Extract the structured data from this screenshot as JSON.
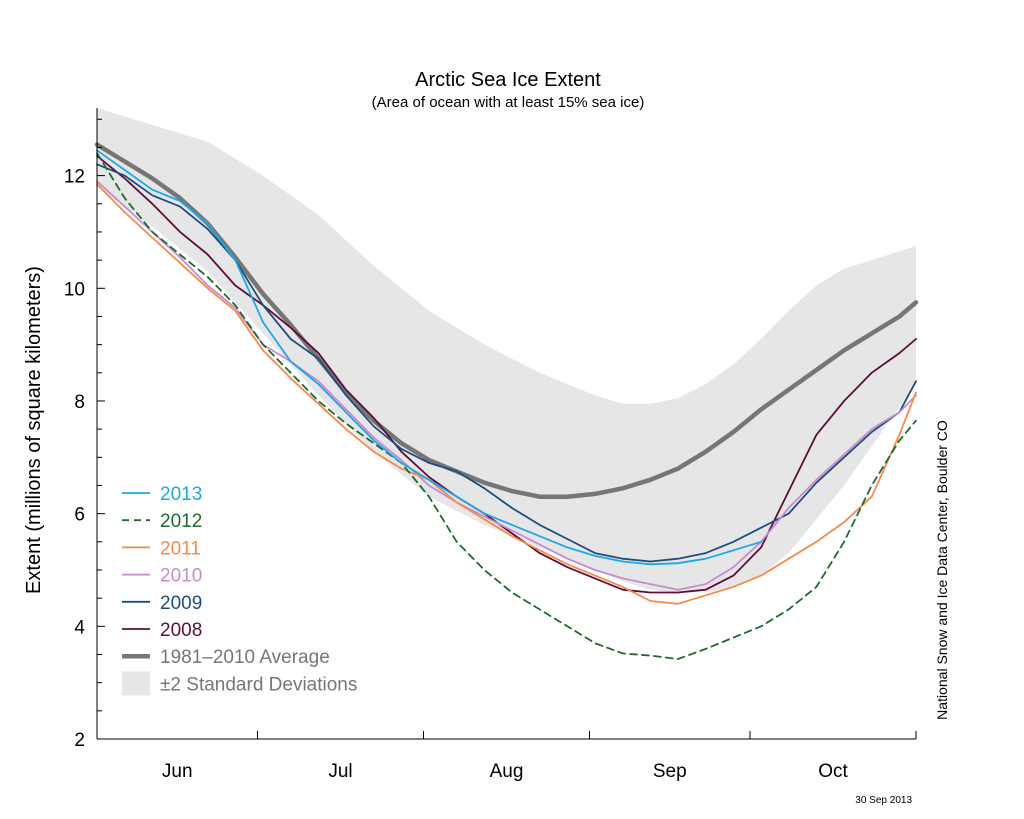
{
  "chart_data": {
    "type": "line",
    "title": "Arctic Sea Ice Extent",
    "subtitle": "(Area of ocean with at least 15% sea ice)",
    "ylabel": "Extent (millions of square kilometers)",
    "xlabel": "",
    "ylim": [
      2,
      13.2
    ],
    "yticks": [
      2,
      4,
      6,
      8,
      10,
      12
    ],
    "xlim": [
      0,
      148
    ],
    "month_boundaries": [
      0,
      29,
      59,
      89,
      118,
      148
    ],
    "month_labels": [
      {
        "label": "Jun",
        "x": 14.5
      },
      {
        "label": "Jul",
        "x": 44
      },
      {
        "label": "Aug",
        "x": 74
      },
      {
        "label": "Sep",
        "x": 103.5
      },
      {
        "label": "Oct",
        "x": 133
      }
    ],
    "std_band": {
      "label": "±2 Standard Deviations",
      "color": "#e6e6e6",
      "x": [
        0,
        10,
        20,
        30,
        40,
        50,
        60,
        70,
        80,
        90,
        95,
        100,
        105,
        110,
        115,
        120,
        125,
        130,
        135,
        140,
        148
      ],
      "upper": [
        13.2,
        12.9,
        12.6,
        12.0,
        11.3,
        10.4,
        9.6,
        9.0,
        8.5,
        8.1,
        7.95,
        7.95,
        8.05,
        8.3,
        8.65,
        9.1,
        9.6,
        10.05,
        10.35,
        10.5,
        10.75
      ],
      "lower": [
        11.8,
        11.1,
        10.3,
        9.2,
        8.1,
        7.1,
        6.3,
        5.8,
        5.4,
        5.0,
        4.8,
        4.65,
        4.6,
        4.6,
        4.7,
        4.9,
        5.3,
        5.9,
        6.5,
        7.2,
        8.3
      ]
    },
    "series": [
      {
        "name": "2013",
        "color": "#1ea7e8",
        "dashed": false,
        "width": 1.8,
        "x": [
          0,
          5,
          10,
          15,
          20,
          25,
          30,
          35,
          40,
          45,
          50,
          55,
          60,
          65,
          70,
          75,
          80,
          85,
          90,
          95,
          100,
          105,
          110,
          115,
          120
        ],
        "y": [
          12.45,
          12.1,
          11.75,
          11.55,
          11.15,
          10.5,
          9.4,
          8.7,
          8.3,
          7.8,
          7.3,
          6.9,
          6.6,
          6.3,
          6.0,
          5.8,
          5.6,
          5.4,
          5.25,
          5.15,
          5.1,
          5.12,
          5.2,
          5.35,
          5.5
        ]
      },
      {
        "name": "2012",
        "color": "#1e6b2e",
        "dashed": true,
        "width": 1.8,
        "x": [
          0,
          5,
          10,
          15,
          20,
          25,
          30,
          35,
          40,
          45,
          50,
          55,
          60,
          65,
          70,
          75,
          80,
          85,
          90,
          95,
          100,
          105,
          110,
          115,
          120,
          125,
          130,
          135,
          140,
          145,
          148
        ],
        "y": [
          12.4,
          11.6,
          11.0,
          10.6,
          10.2,
          9.7,
          9.0,
          8.5,
          8.0,
          7.6,
          7.25,
          6.9,
          6.3,
          5.5,
          5.0,
          4.6,
          4.3,
          4.0,
          3.7,
          3.52,
          3.48,
          3.42,
          3.6,
          3.8,
          4.0,
          4.3,
          4.7,
          5.5,
          6.5,
          7.3,
          7.65
        ]
      },
      {
        "name": "2011",
        "color": "#f58a4b",
        "dashed": false,
        "width": 1.8,
        "x": [
          0,
          5,
          10,
          15,
          20,
          25,
          30,
          35,
          40,
          45,
          50,
          55,
          60,
          65,
          70,
          75,
          80,
          85,
          90,
          95,
          100,
          105,
          110,
          115,
          120,
          125,
          130,
          135,
          140,
          145,
          148
        ],
        "y": [
          11.85,
          11.35,
          10.9,
          10.45,
          10.0,
          9.6,
          8.9,
          8.4,
          7.95,
          7.5,
          7.1,
          6.8,
          6.6,
          6.2,
          5.9,
          5.6,
          5.35,
          5.1,
          4.9,
          4.7,
          4.45,
          4.4,
          4.55,
          4.7,
          4.9,
          5.2,
          5.5,
          5.85,
          6.3,
          7.4,
          8.15
        ]
      },
      {
        "name": "2010",
        "color": "#c88ad0",
        "dashed": false,
        "width": 1.8,
        "x": [
          0,
          5,
          10,
          15,
          20,
          25,
          30,
          35,
          40,
          45,
          50,
          55,
          60,
          65,
          70,
          75,
          80,
          85,
          90,
          95,
          100,
          105,
          110,
          115,
          120,
          125,
          130,
          135,
          140,
          145,
          148
        ],
        "y": [
          11.9,
          11.45,
          11.0,
          10.55,
          10.05,
          9.65,
          9.0,
          8.7,
          8.35,
          7.85,
          7.35,
          6.95,
          6.5,
          6.2,
          5.95,
          5.7,
          5.45,
          5.2,
          5.0,
          4.85,
          4.75,
          4.65,
          4.75,
          5.05,
          5.5,
          6.1,
          6.6,
          7.05,
          7.5,
          7.8,
          8.1
        ]
      },
      {
        "name": "2009",
        "color": "#1f4e7d",
        "dashed": false,
        "width": 1.8,
        "x": [
          0,
          5,
          10,
          15,
          20,
          25,
          30,
          35,
          40,
          45,
          50,
          55,
          60,
          65,
          70,
          75,
          80,
          85,
          90,
          95,
          100,
          105,
          110,
          115,
          120,
          125,
          130,
          135,
          140,
          145,
          148
        ],
        "y": [
          12.2,
          12.0,
          11.65,
          11.45,
          11.05,
          10.5,
          9.7,
          9.1,
          8.75,
          8.1,
          7.55,
          7.15,
          6.9,
          6.75,
          6.45,
          6.1,
          5.8,
          5.55,
          5.3,
          5.2,
          5.15,
          5.2,
          5.3,
          5.5,
          5.75,
          6.0,
          6.55,
          7.0,
          7.45,
          7.8,
          8.35
        ]
      },
      {
        "name": "2008",
        "color": "#5c0f3a",
        "dashed": false,
        "width": 1.8,
        "x": [
          0,
          5,
          10,
          15,
          20,
          25,
          30,
          35,
          40,
          45,
          50,
          55,
          60,
          65,
          70,
          75,
          80,
          85,
          90,
          95,
          100,
          105,
          110,
          115,
          120,
          125,
          130,
          135,
          140,
          145,
          148
        ],
        "y": [
          12.35,
          11.95,
          11.5,
          11.0,
          10.6,
          10.05,
          9.7,
          9.3,
          8.85,
          8.2,
          7.7,
          7.1,
          6.65,
          6.3,
          6.0,
          5.65,
          5.3,
          5.05,
          4.85,
          4.65,
          4.6,
          4.6,
          4.65,
          4.9,
          5.4,
          6.4,
          7.4,
          8.0,
          8.5,
          8.85,
          9.1
        ]
      },
      {
        "name": "1981–2010 Average",
        "color": "#767676",
        "dashed": false,
        "width": 4.5,
        "x": [
          0,
          5,
          10,
          15,
          20,
          25,
          30,
          35,
          40,
          45,
          50,
          55,
          60,
          65,
          70,
          75,
          80,
          85,
          90,
          95,
          100,
          105,
          110,
          115,
          120,
          125,
          130,
          135,
          140,
          145,
          148
        ],
        "y": [
          12.55,
          12.25,
          11.95,
          11.6,
          11.15,
          10.55,
          9.9,
          9.35,
          8.75,
          8.15,
          7.65,
          7.25,
          6.95,
          6.75,
          6.55,
          6.4,
          6.3,
          6.3,
          6.35,
          6.45,
          6.6,
          6.8,
          7.1,
          7.45,
          7.85,
          8.2,
          8.55,
          8.9,
          9.2,
          9.5,
          9.75
        ]
      }
    ],
    "legend_position": "bottom-left"
  },
  "credit": "National Snow and Ice Data Center, Boulder CO",
  "date_stamp": "30 Sep 2013"
}
